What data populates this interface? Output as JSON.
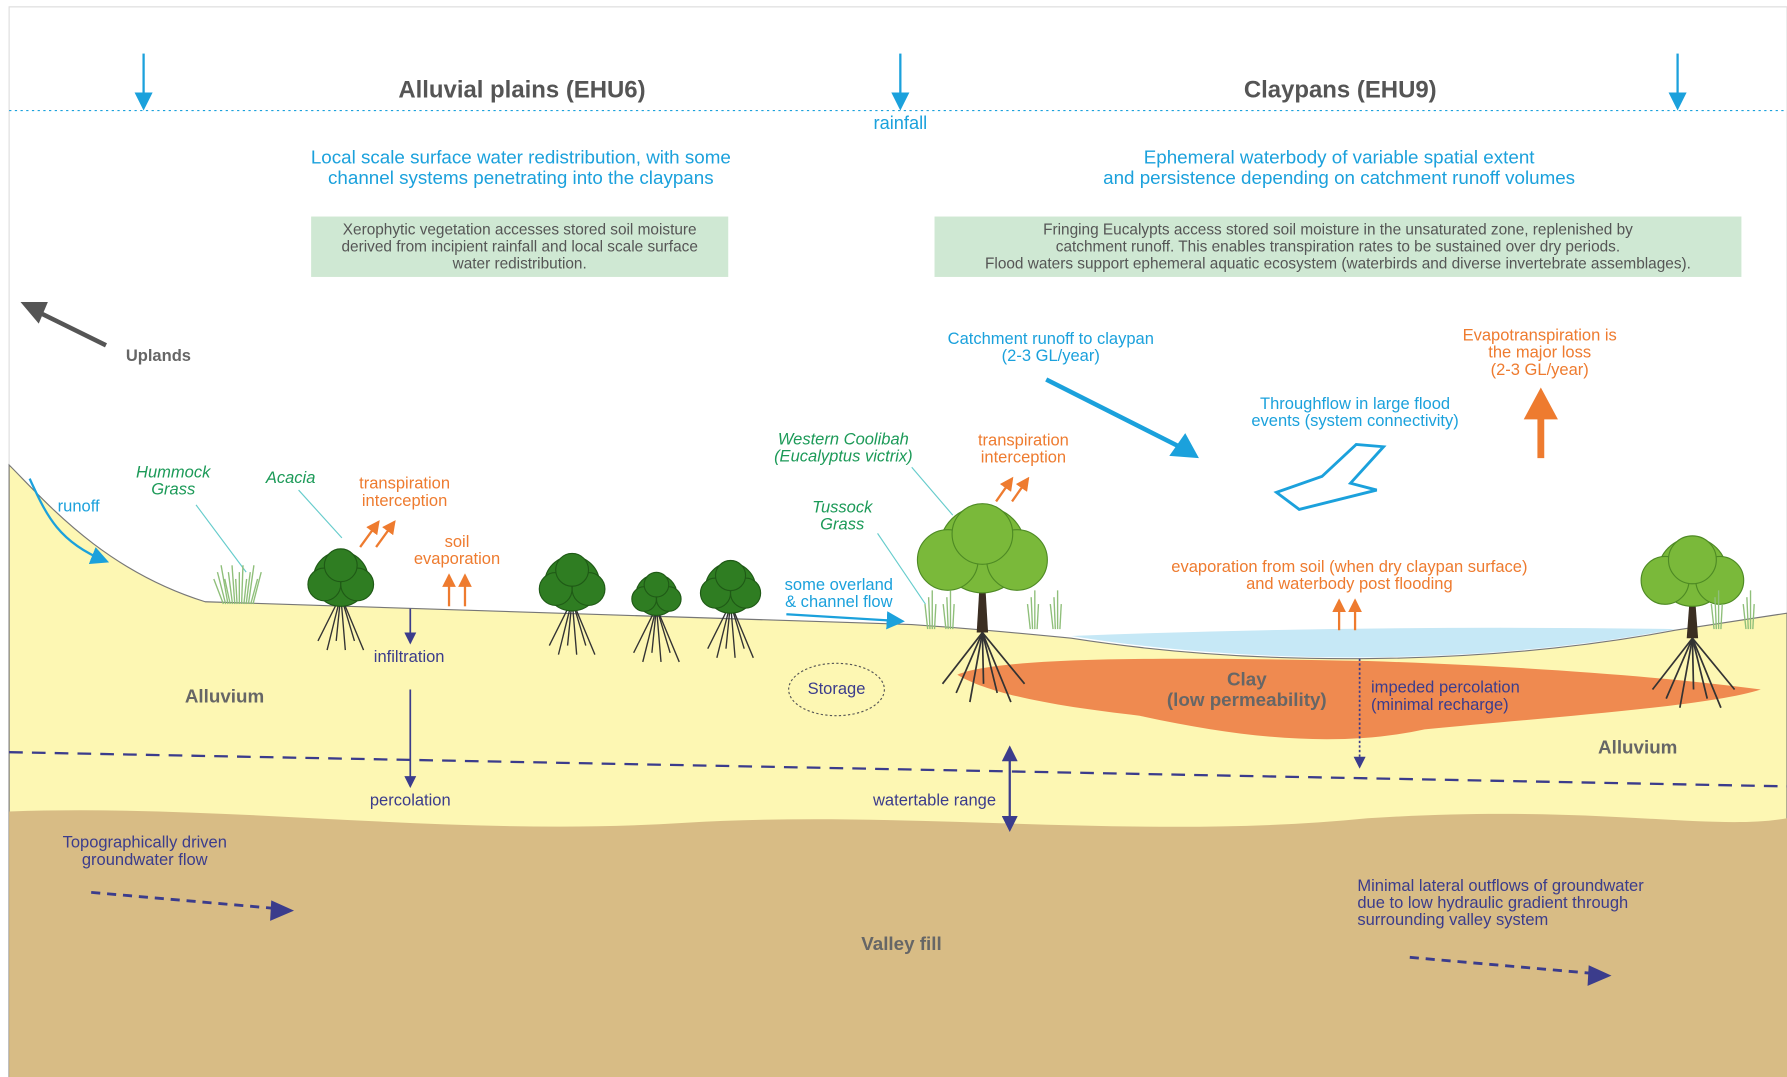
{
  "header": {
    "left_title": "Alluvial plains (EHU6)",
    "right_title": "Claypans (EHU9)",
    "rainfall": "rainfall"
  },
  "left_summary": [
    "Local scale surface water redistribution, with some",
    "channel systems penetrating into the claypans"
  ],
  "right_summary": [
    "Ephemeral waterbody of variable spatial extent",
    "and persistence depending on catchment runoff volumes"
  ],
  "left_box": [
    "Xerophytic vegetation accesses stored soil moisture",
    "derived from incipient rainfall and local scale surface",
    "water redistribution."
  ],
  "right_box": [
    "Fringing Eucalypts access stored soil moisture in the unsaturated zone, replenished by",
    "catchment runoff. This enables transpiration rates to be sustained  over dry periods.",
    "Flood waters support ephemeral aquatic ecosystem (waterbirds and diverse invertebrate assemblages)."
  ],
  "labels": {
    "uplands": [
      "Uplands"
    ],
    "catchment_runoff": [
      "Catchment runoff to claypan",
      "(2-3 GL/year)"
    ],
    "evapotranspiration": [
      "Evapotranspiration is",
      "the major loss",
      "(2-3 GL/year)"
    ],
    "throughflow": [
      "Throughflow in large flood",
      "events (system connectivity)"
    ],
    "coolibah": [
      "Western Coolibah",
      "(Eucalyptus victrix)"
    ],
    "transpiration_right": [
      "transpiration",
      "interception"
    ],
    "hummock": [
      "Hummock",
      "Grass"
    ],
    "acacia": [
      "Acacia"
    ],
    "transpiration_left": [
      "transpiration",
      "interception"
    ],
    "runoff": [
      "runoff"
    ],
    "soil_evaporation": [
      "soil",
      "evaporation"
    ],
    "tussock": [
      "Tussock",
      "Grass"
    ],
    "overland": [
      "some overland",
      "& channel flow"
    ],
    "evaporation_soil": [
      "evaporation from soil (when dry claypan surface)",
      "and waterbody post flooding"
    ],
    "infiltration": [
      "infiltration"
    ],
    "storage": [
      "Storage"
    ],
    "alluvium_left": [
      "Alluvium"
    ],
    "alluvium_right": [
      "Alluvium"
    ],
    "clay": [
      "Clay",
      "(low permeability)"
    ],
    "impeded": [
      "impeded percolation",
      "(minimal recharge)"
    ],
    "percolation": [
      "percolation"
    ],
    "watertable": [
      "watertable range"
    ],
    "topographic": [
      "Topographically driven",
      "groundwater flow"
    ],
    "lateral": [
      "Minimal lateral outflows of groundwater",
      "due to low hydraulic gradient through",
      "surrounding valley system"
    ],
    "valley_fill": [
      "Valley fill"
    ]
  }
}
